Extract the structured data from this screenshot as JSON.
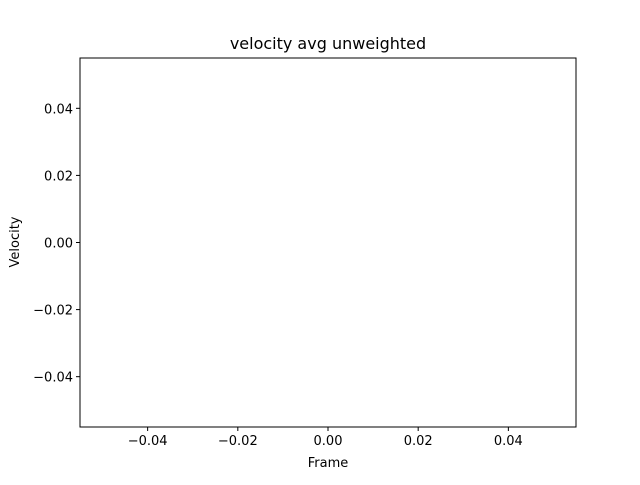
{
  "chart_data": {
    "type": "line",
    "title": "velocity avg unweighted",
    "xlabel": "Frame",
    "ylabel": "Velocity",
    "series": [
      {
        "x": [],
        "y": []
      }
    ],
    "xlim": [
      -0.055,
      0.055
    ],
    "ylim": [
      -0.055,
      0.055
    ],
    "xticks": [
      -0.04,
      -0.02,
      0.0,
      0.02,
      0.04
    ],
    "xtick_labels": [
      "−0.04",
      "−0.02",
      "0.00",
      "0.02",
      "0.04"
    ],
    "yticks": [
      -0.04,
      -0.02,
      0.0,
      0.02,
      0.04
    ],
    "ytick_labels": [
      "−0.04",
      "−0.02",
      "0.00",
      "0.02",
      "0.04"
    ],
    "grid": false,
    "legend": "none"
  }
}
